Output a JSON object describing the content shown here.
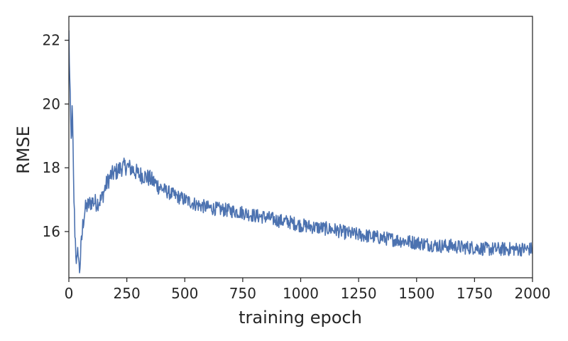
{
  "chart_data": {
    "type": "line",
    "title": "",
    "xlabel": "training epoch",
    "ylabel": "RMSE",
    "xlim": [
      0,
      2000
    ],
    "ylim": [
      14.55,
      22.75
    ],
    "grid": false,
    "x_ticks": [
      0,
      250,
      500,
      750,
      1000,
      1250,
      1500,
      1750,
      2000
    ],
    "y_ticks": [
      16,
      18,
      20,
      22
    ],
    "series": [
      {
        "color": "#4c72b0",
        "x": [
          0,
          5,
          10,
          15,
          20,
          25,
          30,
          35,
          40,
          45,
          50,
          60,
          70,
          80,
          100,
          120,
          140,
          160,
          180,
          200,
          225,
          250,
          275,
          300,
          325,
          350,
          375,
          400,
          450,
          500,
          550,
          600,
          650,
          700,
          750,
          800,
          850,
          900,
          950,
          1000,
          1050,
          1100,
          1150,
          1200,
          1250,
          1300,
          1350,
          1400,
          1450,
          1500,
          1550,
          1600,
          1650,
          1700,
          1750,
          1800,
          1850,
          1900,
          1950,
          2000
        ],
        "y": [
          22.2,
          20.3,
          18.8,
          19.9,
          17.6,
          16.2,
          15.4,
          14.9,
          15.5,
          14.7,
          15.2,
          16.2,
          16.7,
          16.8,
          16.95,
          16.9,
          17.0,
          17.45,
          17.75,
          17.85,
          18.0,
          18.05,
          17.95,
          17.8,
          17.75,
          17.65,
          17.5,
          17.35,
          17.15,
          17.0,
          16.85,
          16.75,
          16.7,
          16.65,
          16.6,
          16.5,
          16.45,
          16.35,
          16.3,
          16.2,
          16.15,
          16.1,
          16.05,
          15.95,
          15.9,
          15.85,
          15.8,
          15.75,
          15.7,
          15.65,
          15.6,
          15.55,
          15.55,
          15.5,
          15.5,
          15.45,
          15.45,
          15.45,
          15.45,
          15.45
        ]
      }
    ]
  }
}
